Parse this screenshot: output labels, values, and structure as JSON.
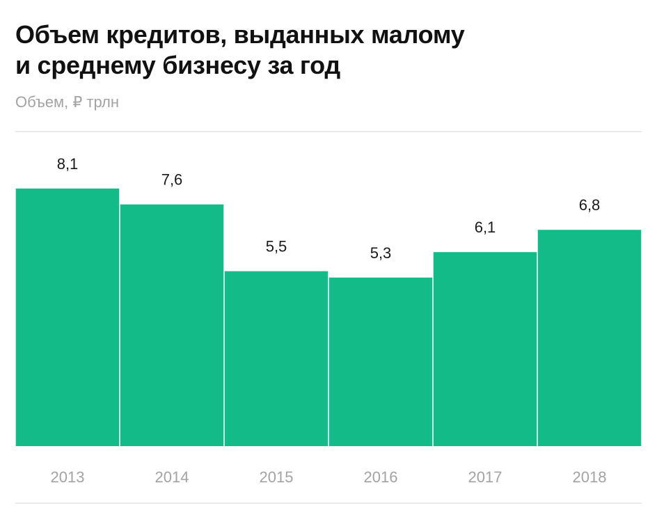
{
  "title_lines": [
    "Объем кредитов, выданных малому",
    "и среднему бизнесу за год"
  ],
  "subtitle": "Объем, ₽ трлн",
  "colors": {
    "bar": "#12bb88",
    "title": "#111111",
    "muted": "#a3a3a3",
    "rule": "#e3e3e3"
  },
  "chart_data": {
    "type": "bar",
    "categories": [
      "2013",
      "2014",
      "2015",
      "2016",
      "2017",
      "2018"
    ],
    "values": [
      8.1,
      7.6,
      5.5,
      5.3,
      6.1,
      6.8
    ],
    "value_labels": [
      "8,1",
      "7,6",
      "5,5",
      "5,3",
      "6,1",
      "6,8"
    ],
    "ylabel": "Объем, ₽ трлн",
    "ylim": [
      0,
      8.1
    ],
    "grid": false,
    "legend": "none"
  }
}
